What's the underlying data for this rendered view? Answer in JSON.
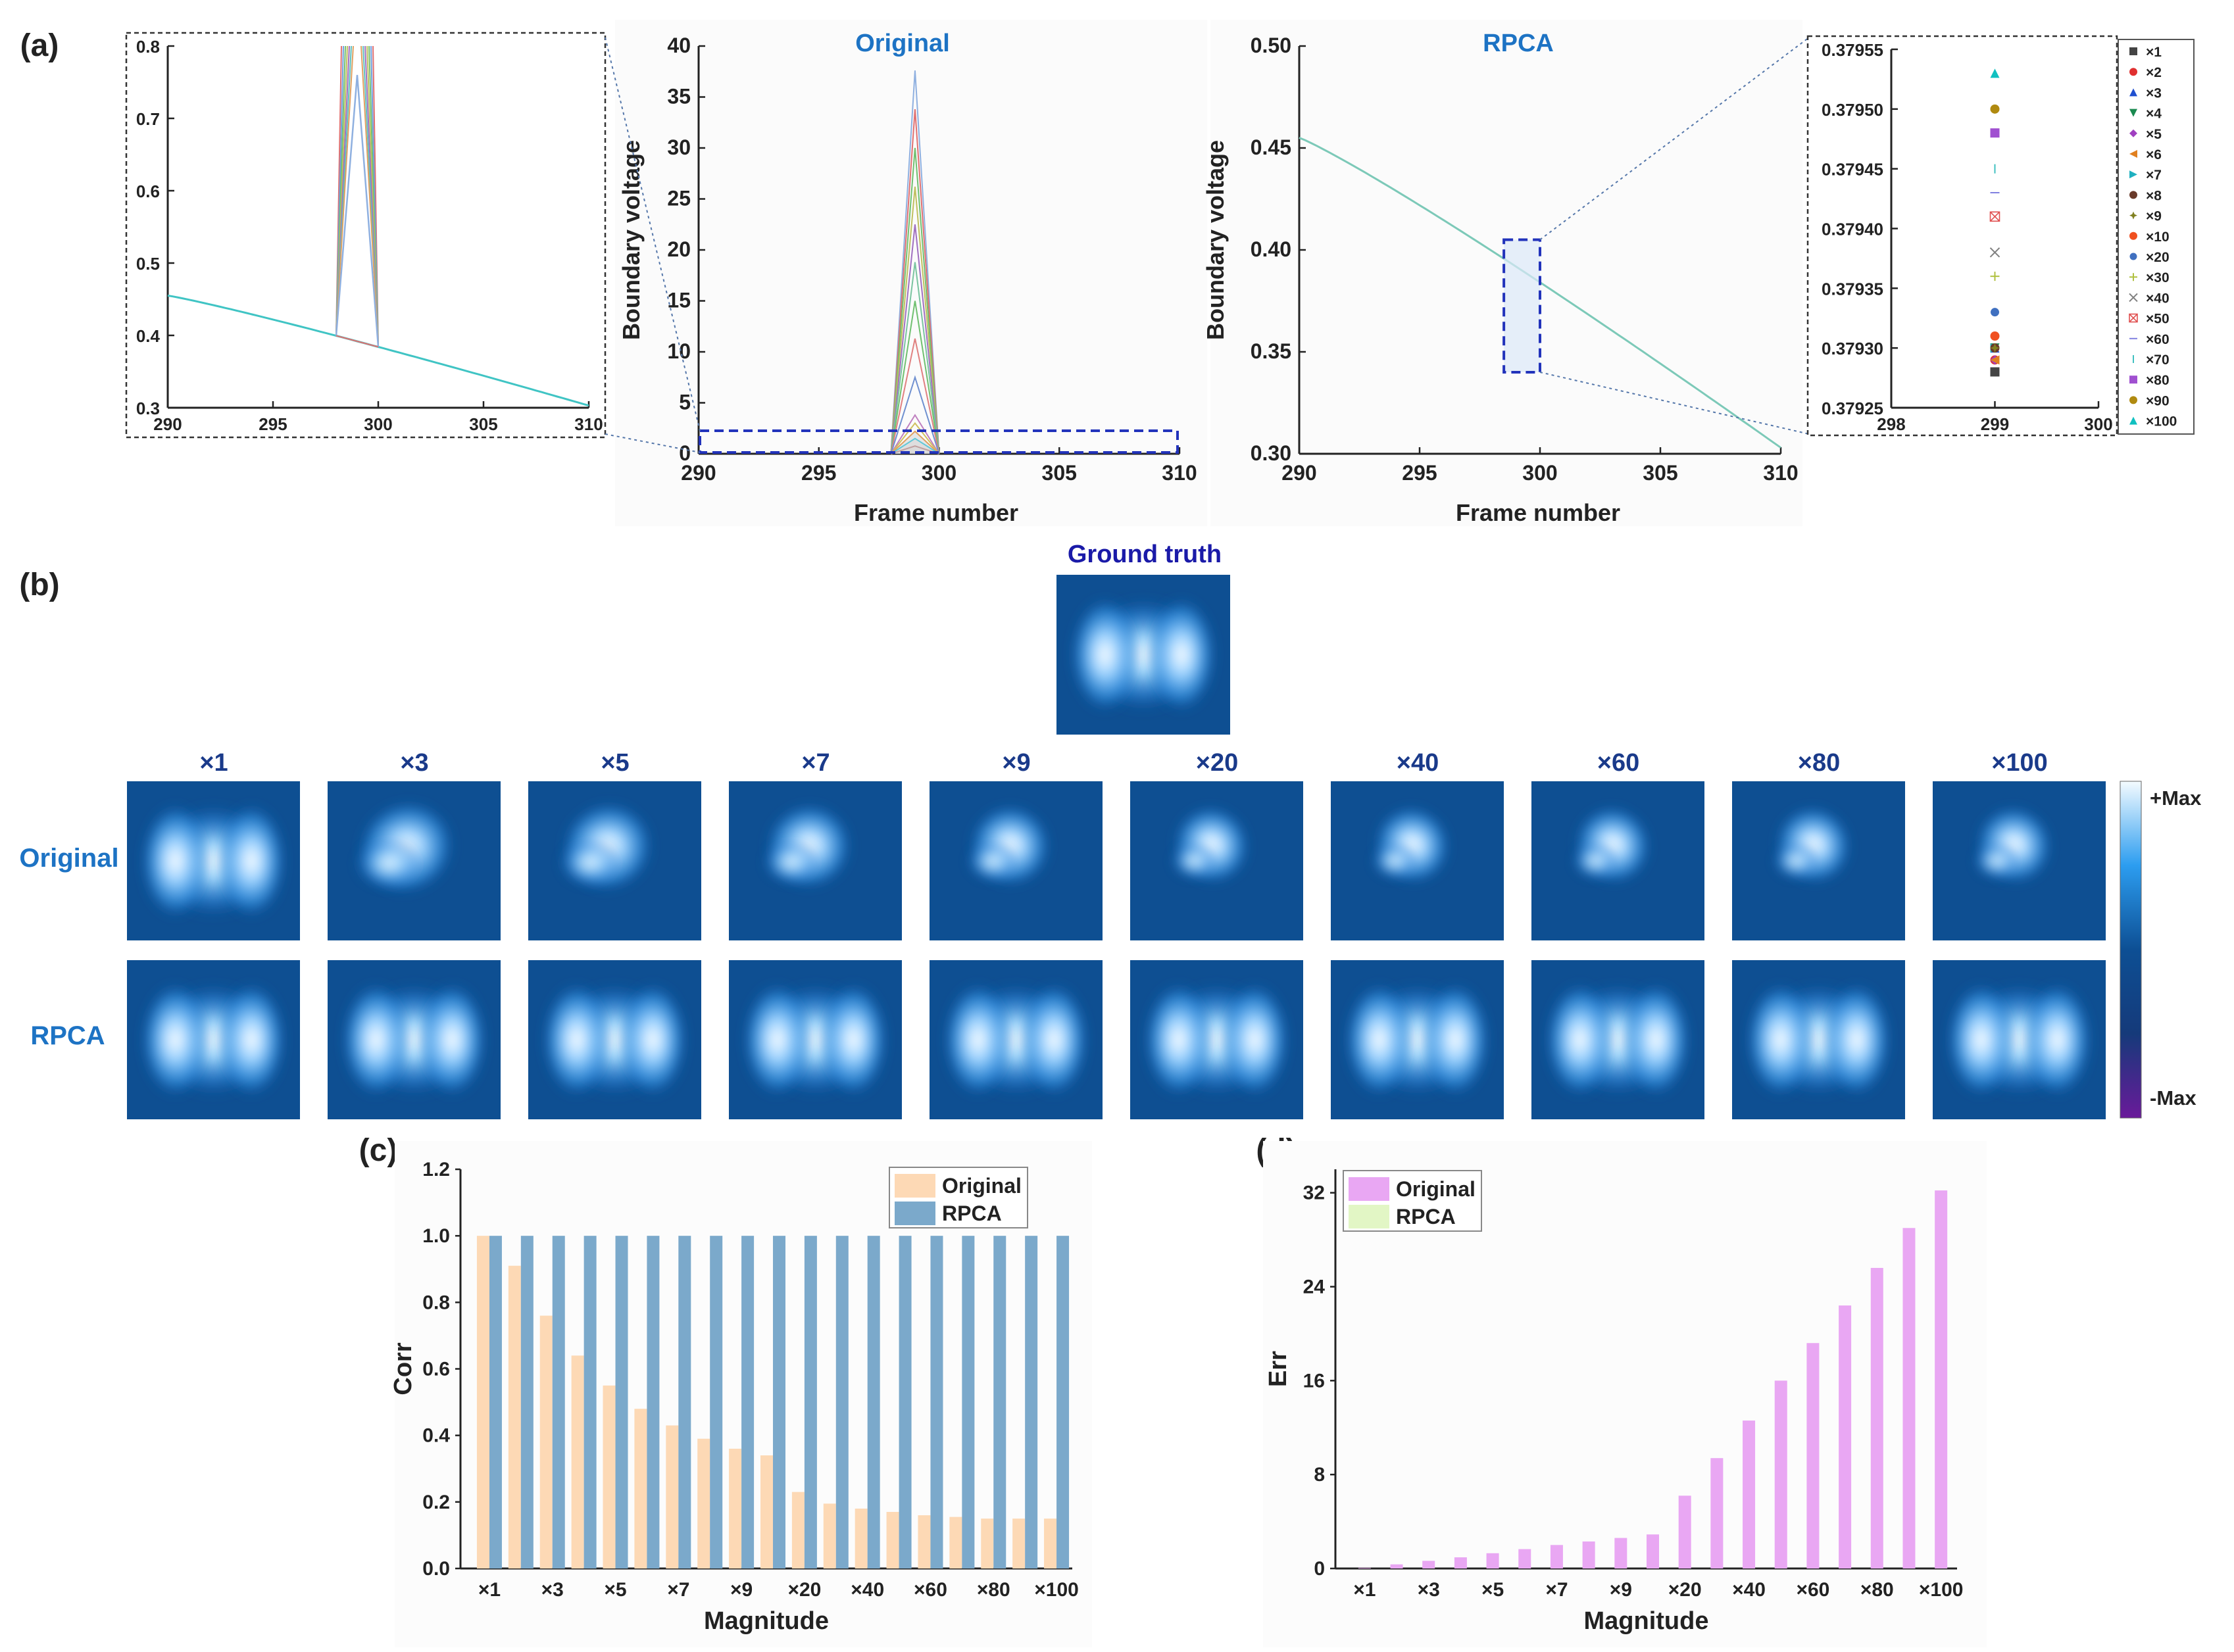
{
  "panel_labels": {
    "a": "(a)",
    "b": "(b)",
    "c": "(c)",
    "d": "(d)"
  },
  "colors": {
    "title_blue": "#1d73c4",
    "gt_blue": "#1a1aa8",
    "rpca_bar": "#7ba9cb",
    "orig_bar": "#fdd9b5",
    "err_orig": "#e9a7f3",
    "err_rpca": "#e2f6c5",
    "curve": "#40c4c4"
  },
  "panel_a": {
    "zoom_left": {
      "xticks": [
        "290",
        "295",
        "300",
        "305",
        "310"
      ],
      "yticks": [
        "0.3",
        "0.4",
        "0.5",
        "0.6",
        "0.7",
        "0.8"
      ],
      "xlim": [
        290,
        310
      ],
      "ylim": [
        0.3,
        0.8
      ]
    },
    "original": {
      "title": "Original",
      "xlabel": "Frame number",
      "ylabel": "Boundary voltage",
      "xticks": [
        "290",
        "295",
        "300",
        "305",
        "310"
      ],
      "yticks": [
        "0",
        "5",
        "10",
        "15",
        "20",
        "25",
        "30",
        "35",
        "40"
      ],
      "xlim": [
        290,
        310
      ],
      "ylim": [
        0,
        40
      ],
      "spike_peaks": [
        0.76,
        1.5,
        2.2,
        3,
        3.8,
        7.5,
        11.3,
        15,
        18.8,
        22.5,
        26.2,
        30,
        33.8,
        37.6
      ]
    },
    "rpca": {
      "title": "RPCA",
      "xlabel": "Frame number",
      "ylabel": "Boundary voltage",
      "xticks": [
        "290",
        "295",
        "300",
        "305",
        "310"
      ],
      "yticks": [
        "0.30",
        "0.35",
        "0.40",
        "0.45",
        "0.50"
      ],
      "xlim": [
        290,
        310
      ],
      "ylim": [
        0.3,
        0.5
      ]
    },
    "zoom_right": {
      "xticks": [
        "298",
        "299",
        "300"
      ],
      "yticks": [
        "0.37925",
        "0.37930",
        "0.37935",
        "0.37940",
        "0.37945",
        "0.37950",
        "0.37955"
      ],
      "xlim": [
        298,
        300
      ],
      "ylim": [
        0.37925,
        0.37955
      ]
    },
    "legend": [
      {
        "label": "×1",
        "marker": "square",
        "color": "#444444",
        "y": 0.37928
      },
      {
        "label": "×2",
        "marker": "circle",
        "color": "#e03030",
        "y": 0.37929
      },
      {
        "label": "×3",
        "marker": "triangle",
        "color": "#2050d0",
        "y": 0.3793
      },
      {
        "label": "×4",
        "marker": "tri-down",
        "color": "#1a8a50",
        "y": 0.3793
      },
      {
        "label": "×5",
        "marker": "diamond",
        "color": "#a040c0",
        "y": 0.37929
      },
      {
        "label": "×6",
        "marker": "tri-left",
        "color": "#e08020",
        "y": 0.37929
      },
      {
        "label": "×7",
        "marker": "tri-right",
        "color": "#20b0c0",
        "y": 0.3793
      },
      {
        "label": "×8",
        "marker": "hexagon",
        "color": "#6a3a2a",
        "y": 0.3793
      },
      {
        "label": "×9",
        "marker": "star",
        "color": "#808020",
        "y": 0.3793
      },
      {
        "label": "×10",
        "marker": "circle",
        "color": "#f05020",
        "y": 0.37931
      },
      {
        "label": "×20",
        "marker": "circle-half",
        "color": "#4070c0",
        "y": 0.37933
      },
      {
        "label": "×30",
        "marker": "plus",
        "color": "#b0c040",
        "y": 0.37936
      },
      {
        "label": "×40",
        "marker": "x",
        "color": "#808080",
        "y": 0.37938
      },
      {
        "label": "×50",
        "marker": "x-square",
        "color": "#e05050",
        "y": 0.37941
      },
      {
        "label": "×60",
        "marker": "hline",
        "color": "#8080e0",
        "y": 0.37943
      },
      {
        "label": "×70",
        "marker": "vline",
        "color": "#40c0c0",
        "y": 0.37945
      },
      {
        "label": "×80",
        "marker": "square",
        "color": "#a050d0",
        "y": 0.37948
      },
      {
        "label": "×90",
        "marker": "circle",
        "color": "#b08a10",
        "y": 0.3795
      },
      {
        "label": "×100",
        "marker": "triangle",
        "color": "#10c0c0",
        "y": 0.37953
      }
    ]
  },
  "panel_b": {
    "ground_truth": "Ground truth",
    "columns": [
      "×1",
      "×3",
      "×5",
      "×7",
      "×9",
      "×20",
      "×40",
      "×60",
      "×80",
      "×100"
    ],
    "row_labels": [
      "Original",
      "RPCA"
    ],
    "colorbar": {
      "max": "+Max",
      "min": "-Max"
    }
  },
  "chart_data": [
    {
      "type": "bar",
      "panel": "c",
      "categories": [
        "×1",
        "×2",
        "×3",
        "×4",
        "×5",
        "×6",
        "×7",
        "×8",
        "×9",
        "×10",
        "×20",
        "×30",
        "×40",
        "×50",
        "×60",
        "×70",
        "×80",
        "×90",
        "×100"
      ],
      "tick_labels": [
        "×1",
        "×3",
        "×5",
        "×7",
        "×9",
        "×20",
        "×40",
        "×60",
        "×80",
        "×100"
      ],
      "series": [
        {
          "name": "Original",
          "values": [
            1.0,
            0.91,
            0.76,
            0.64,
            0.55,
            0.48,
            0.43,
            0.39,
            0.36,
            0.34,
            0.23,
            0.195,
            0.18,
            0.17,
            0.16,
            0.155,
            0.15,
            0.15,
            0.15
          ]
        },
        {
          "name": "RPCA",
          "values": [
            1.0,
            1.0,
            1.0,
            1.0,
            1.0,
            1.0,
            1.0,
            1.0,
            1.0,
            1.0,
            1.0,
            1.0,
            1.0,
            1.0,
            1.0,
            1.0,
            1.0,
            1.0,
            1.0
          ]
        }
      ],
      "xlabel": "Magnitude",
      "ylabel": "Corr",
      "ylim": [
        0,
        1.2
      ],
      "yticks": [
        "0.0",
        "0.2",
        "0.4",
        "0.6",
        "0.8",
        "1.0",
        "1.2"
      ],
      "legend_position": "top-right"
    },
    {
      "type": "bar",
      "panel": "d",
      "categories": [
        "×1",
        "×2",
        "×3",
        "×4",
        "×5",
        "×6",
        "×7",
        "×8",
        "×9",
        "×10",
        "×20",
        "×30",
        "×40",
        "×50",
        "×60",
        "×70",
        "×80",
        "×90",
        "×100"
      ],
      "tick_labels": [
        "×1",
        "×3",
        "×5",
        "×7",
        "×9",
        "×20",
        "×40",
        "×60",
        "×80",
        "×100"
      ],
      "series": [
        {
          "name": "Original",
          "values": [
            0.05,
            0.35,
            0.65,
            0.95,
            1.3,
            1.65,
            2.0,
            2.3,
            2.6,
            2.9,
            6.2,
            9.4,
            12.6,
            16.0,
            19.2,
            22.4,
            25.6,
            29.0,
            32.2
          ]
        },
        {
          "name": "RPCA",
          "values": [
            0,
            0,
            0,
            0,
            0,
            0,
            0,
            0,
            0,
            0,
            0,
            0,
            0,
            0,
            0,
            0,
            0,
            0,
            0
          ]
        }
      ],
      "xlabel": "Magnitude",
      "ylabel": "Err",
      "ylim": [
        0,
        34
      ],
      "yticks": [
        "0",
        "8",
        "16",
        "24",
        "32"
      ],
      "legend_position": "top-left"
    }
  ]
}
